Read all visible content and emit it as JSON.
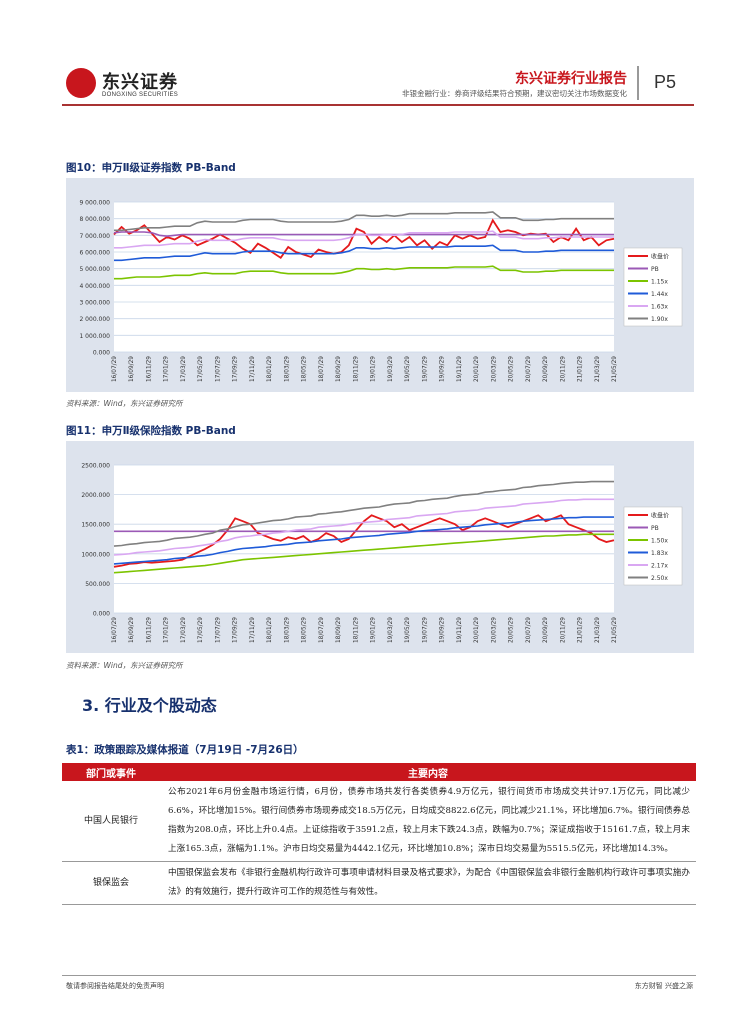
{
  "header": {
    "logo_name": "东兴证券",
    "logo_en": "DONGXING SECURITIES",
    "report_title": "东兴证券行业报告",
    "report_subtitle": "非银金融行业：券商评级结果符合预期，建议密切关注市场数据变化",
    "page": "P5"
  },
  "figure10": {
    "title": "图10：申万Ⅱ级证券指数 PB-Band",
    "source": "资料来源：Wind，东兴证券研究所"
  },
  "figure11": {
    "title": "图11：申万Ⅱ级保险指数 PB-Band",
    "source": "资料来源：Wind，东兴证券研究所"
  },
  "chart_data": [
    {
      "type": "line",
      "title": "",
      "ylim": [
        0,
        9000
      ],
      "y_ticks": [
        "0.000",
        "1 000.000",
        "2 000.000",
        "3 000.000",
        "4 000.000",
        "5 000.000",
        "6 000.000",
        "7 000.000",
        "8 000.000",
        "9 000.000"
      ],
      "x_ticks": [
        "16/07/29",
        "16/09/29",
        "16/11/29",
        "17/01/29",
        "17/03/29",
        "17/05/29",
        "17/07/29",
        "17/09/29",
        "17/11/29",
        "18/01/29",
        "18/03/29",
        "18/05/29",
        "18/07/29",
        "18/09/29",
        "18/11/29",
        "19/01/29",
        "19/03/29",
        "19/05/29",
        "19/07/29",
        "19/09/29",
        "19/11/29",
        "20/01/29",
        "20/03/29",
        "20/05/29",
        "20/07/29",
        "20/09/29",
        "20/11/29",
        "21/01/29",
        "21/03/29",
        "21/05/29"
      ],
      "legend_position": "right",
      "series": [
        {
          "name": "收盘价",
          "color": "#e41a1c",
          "values": [
            7050,
            7500,
            7100,
            7300,
            7600,
            7100,
            6600,
            6900,
            6750,
            7000,
            6800,
            6400,
            6600,
            6800,
            7050,
            6800,
            6550,
            6200,
            5950,
            6500,
            6250,
            5950,
            5650,
            6300,
            6000,
            5850,
            5700,
            6150,
            6000,
            5900,
            6000,
            6400,
            7400,
            7200,
            6500,
            6900,
            6600,
            7000,
            6600,
            6900,
            6400,
            6700,
            6200,
            6600,
            6400,
            7000,
            6800,
            7000,
            6800,
            6900,
            7900,
            7200,
            7300,
            7200,
            7000,
            7100,
            7050,
            7100,
            6600,
            6900,
            6700,
            7400,
            6700,
            6900,
            6400,
            6700,
            6800
          ]
        },
        {
          "name": "PB",
          "color": "#9b59b6",
          "values": [
            7150,
            7200,
            7200,
            7200,
            7200,
            7150,
            7000,
            6950,
            7000,
            7050,
            7050,
            7050,
            7050,
            7050,
            7050,
            7050,
            7050,
            7050,
            7050,
            7050,
            7050,
            7050,
            7050,
            7050,
            7050,
            7050,
            7050,
            7050,
            7050,
            7050,
            7050,
            7050,
            7050,
            7050,
            7050,
            7050,
            7050,
            7050,
            7050,
            7050,
            7050,
            7050,
            7050,
            7050,
            7050,
            7050,
            7050,
            7050,
            7050,
            7050,
            7050,
            7050,
            7050,
            7050,
            7050,
            7050,
            7050,
            7050,
            7050,
            7050,
            7050,
            7050,
            7050,
            7050,
            7050,
            7050,
            7050
          ]
        },
        {
          "name": "1.15x",
          "color": "#7cc400",
          "values": [
            4400,
            4400,
            4450,
            4500,
            4500,
            4500,
            4500,
            4550,
            4600,
            4600,
            4600,
            4700,
            4750,
            4700,
            4700,
            4700,
            4700,
            4800,
            4850,
            4850,
            4850,
            4850,
            4750,
            4700,
            4700,
            4700,
            4700,
            4700,
            4700,
            4700,
            4750,
            4850,
            5000,
            5000,
            4950,
            4950,
            5000,
            4950,
            5000,
            5050,
            5050,
            5050,
            5050,
            5050,
            5050,
            5100,
            5100,
            5100,
            5100,
            5100,
            5150,
            4900,
            4900,
            4900,
            4800,
            4800,
            4800,
            4850,
            4850,
            4900,
            4900,
            4900,
            4900,
            4900,
            4900,
            4900,
            4900
          ]
        },
        {
          "name": "1.44x",
          "color": "#1f5bd8",
          "values": [
            5500,
            5500,
            5550,
            5600,
            5650,
            5650,
            5650,
            5700,
            5750,
            5750,
            5750,
            5850,
            5950,
            5900,
            5900,
            5900,
            5900,
            6000,
            6050,
            6050,
            6050,
            6050,
            5950,
            5900,
            5900,
            5900,
            5900,
            5900,
            5900,
            5900,
            5950,
            6050,
            6250,
            6250,
            6200,
            6200,
            6250,
            6200,
            6250,
            6300,
            6300,
            6300,
            6300,
            6300,
            6300,
            6350,
            6350,
            6350,
            6350,
            6350,
            6400,
            6100,
            6100,
            6100,
            6000,
            6000,
            6000,
            6050,
            6050,
            6100,
            6100,
            6100,
            6100,
            6100,
            6100,
            6100,
            6100
          ]
        },
        {
          "name": "1.63x",
          "color": "#d9a7f2",
          "values": [
            6250,
            6250,
            6300,
            6350,
            6400,
            6400,
            6400,
            6450,
            6500,
            6500,
            6500,
            6650,
            6750,
            6700,
            6700,
            6700,
            6700,
            6800,
            6850,
            6850,
            6850,
            6850,
            6750,
            6700,
            6700,
            6700,
            6700,
            6700,
            6700,
            6700,
            6750,
            6850,
            7050,
            7050,
            7000,
            7000,
            7050,
            7000,
            7050,
            7150,
            7150,
            7150,
            7150,
            7150,
            7150,
            7200,
            7200,
            7200,
            7200,
            7200,
            7250,
            6900,
            6900,
            6900,
            6800,
            6800,
            6800,
            6850,
            6850,
            6900,
            6900,
            6900,
            6900,
            6900,
            6900,
            6900,
            6900
          ]
        },
        {
          "name": "1.90x",
          "color": "#808080",
          "values": [
            7300,
            7300,
            7350,
            7400,
            7450,
            7450,
            7450,
            7500,
            7550,
            7550,
            7550,
            7750,
            7850,
            7800,
            7800,
            7800,
            7800,
            7900,
            7950,
            7950,
            7950,
            7950,
            7850,
            7800,
            7800,
            7800,
            7800,
            7800,
            7800,
            7800,
            7850,
            7950,
            8200,
            8200,
            8150,
            8150,
            8200,
            8150,
            8200,
            8300,
            8300,
            8300,
            8300,
            8300,
            8300,
            8350,
            8350,
            8350,
            8350,
            8350,
            8400,
            8050,
            8050,
            8050,
            7900,
            7900,
            7900,
            7950,
            7950,
            8000,
            8000,
            8000,
            8000,
            8000,
            8000,
            8000,
            8000
          ]
        }
      ]
    },
    {
      "type": "line",
      "title": "",
      "ylim": [
        0,
        2500
      ],
      "y_ticks": [
        "0.000",
        "500.000",
        "1000.000",
        "1500.000",
        "2000.000",
        "2500.000"
      ],
      "x_ticks": [
        "16/07/29",
        "16/09/29",
        "16/11/29",
        "17/01/29",
        "17/03/29",
        "17/05/29",
        "17/07/29",
        "17/09/29",
        "17/11/29",
        "18/01/29",
        "18/03/29",
        "18/05/29",
        "18/07/29",
        "18/09/29",
        "18/11/29",
        "19/01/29",
        "19/03/29",
        "19/05/29",
        "19/07/29",
        "19/09/29",
        "19/11/29",
        "20/01/29",
        "20/03/29",
        "20/05/29",
        "20/07/29",
        "20/09/29",
        "20/11/29",
        "21/01/29",
        "21/03/29",
        "21/05/29"
      ],
      "legend_position": "right",
      "series": [
        {
          "name": "收盘价",
          "color": "#e41a1c",
          "values": [
            780,
            800,
            830,
            840,
            860,
            850,
            860,
            870,
            880,
            900,
            960,
            1020,
            1080,
            1150,
            1250,
            1400,
            1600,
            1550,
            1500,
            1350,
            1300,
            1250,
            1220,
            1280,
            1250,
            1300,
            1200,
            1250,
            1350,
            1300,
            1200,
            1250,
            1400,
            1550,
            1650,
            1600,
            1550,
            1450,
            1500,
            1400,
            1450,
            1500,
            1550,
            1600,
            1550,
            1500,
            1400,
            1450,
            1550,
            1600,
            1550,
            1500,
            1450,
            1500,
            1550,
            1600,
            1650,
            1550,
            1600,
            1650,
            1500,
            1450,
            1400,
            1350,
            1250,
            1200,
            1230
          ]
        },
        {
          "name": "PB",
          "color": "#9b59b6",
          "values": [
            1380,
            1380,
            1380,
            1380,
            1380,
            1380,
            1380,
            1380,
            1380,
            1380,
            1380,
            1380,
            1380,
            1380,
            1380,
            1380,
            1380,
            1380,
            1380,
            1380,
            1380,
            1380,
            1380,
            1380,
            1380,
            1380,
            1380,
            1380,
            1380,
            1380,
            1380,
            1380,
            1380,
            1380,
            1380,
            1380,
            1380,
            1380,
            1380,
            1380,
            1380,
            1380,
            1380,
            1380,
            1380,
            1380,
            1380,
            1380,
            1380,
            1380,
            1380,
            1380,
            1380,
            1380,
            1380,
            1380,
            1380,
            1380,
            1380,
            1380,
            1380,
            1380,
            1380,
            1380,
            1380,
            1380,
            1380
          ]
        },
        {
          "name": "1.50x",
          "color": "#7cc400",
          "values": [
            680,
            690,
            700,
            710,
            720,
            730,
            740,
            750,
            760,
            770,
            780,
            790,
            800,
            820,
            840,
            860,
            880,
            900,
            910,
            920,
            930,
            940,
            950,
            960,
            970,
            980,
            990,
            1000,
            1010,
            1020,
            1030,
            1040,
            1050,
            1060,
            1070,
            1080,
            1090,
            1100,
            1110,
            1120,
            1130,
            1140,
            1150,
            1160,
            1170,
            1180,
            1190,
            1200,
            1210,
            1220,
            1230,
            1240,
            1250,
            1260,
            1270,
            1280,
            1290,
            1300,
            1300,
            1310,
            1320,
            1320,
            1330,
            1330,
            1330,
            1330,
            1330
          ]
        },
        {
          "name": "1.83x",
          "color": "#1f5bd8",
          "values": [
            830,
            840,
            850,
            860,
            870,
            880,
            890,
            900,
            920,
            930,
            940,
            960,
            970,
            990,
            1020,
            1040,
            1070,
            1090,
            1100,
            1110,
            1120,
            1140,
            1150,
            1160,
            1180,
            1190,
            1200,
            1220,
            1230,
            1240,
            1250,
            1270,
            1280,
            1290,
            1300,
            1310,
            1330,
            1340,
            1350,
            1360,
            1380,
            1390,
            1400,
            1410,
            1420,
            1440,
            1450,
            1460,
            1470,
            1490,
            1500,
            1510,
            1520,
            1530,
            1550,
            1560,
            1570,
            1580,
            1590,
            1600,
            1610,
            1610,
            1620,
            1620,
            1620,
            1620,
            1620
          ]
        },
        {
          "name": "2.17x",
          "color": "#d9a7f2",
          "values": [
            980,
            990,
            1000,
            1020,
            1030,
            1040,
            1050,
            1070,
            1090,
            1100,
            1110,
            1130,
            1150,
            1170,
            1210,
            1230,
            1270,
            1290,
            1300,
            1320,
            1330,
            1350,
            1360,
            1380,
            1400,
            1410,
            1420,
            1450,
            1460,
            1470,
            1480,
            1500,
            1520,
            1530,
            1540,
            1550,
            1580,
            1590,
            1600,
            1610,
            1640,
            1650,
            1660,
            1670,
            1680,
            1710,
            1720,
            1730,
            1740,
            1770,
            1780,
            1790,
            1800,
            1810,
            1840,
            1850,
            1860,
            1870,
            1880,
            1900,
            1910,
            1910,
            1920,
            1920,
            1920,
            1920,
            1920
          ]
        },
        {
          "name": "2.50x",
          "color": "#808080",
          "values": [
            1130,
            1140,
            1160,
            1170,
            1190,
            1200,
            1210,
            1230,
            1260,
            1270,
            1280,
            1300,
            1330,
            1350,
            1400,
            1420,
            1460,
            1490,
            1500,
            1520,
            1540,
            1560,
            1570,
            1590,
            1620,
            1630,
            1640,
            1670,
            1680,
            1700,
            1710,
            1730,
            1750,
            1770,
            1780,
            1790,
            1820,
            1840,
            1850,
            1860,
            1890,
            1900,
            1920,
            1930,
            1940,
            1970,
            1990,
            2000,
            2010,
            2040,
            2050,
            2070,
            2080,
            2090,
            2120,
            2130,
            2150,
            2160,
            2170,
            2190,
            2200,
            2210,
            2210,
            2220,
            2220,
            2220,
            2220
          ]
        }
      ]
    }
  ],
  "section": {
    "title": "3.  行业及个股动态"
  },
  "table": {
    "title": "表1：政策跟踪及媒体报道（7月19日 -7月26日）",
    "headers": [
      "部门或事件",
      "主要内容"
    ],
    "rows": [
      {
        "dept": "中国人民银行",
        "content": "公布2021年6月份金融市场运行情，6月份，债券市场共发行各类债券4.9万亿元，银行间货币市场成交共计97.1万亿元，同比减少6.6%，环比增加15%。银行间债券市场现券成交18.5万亿元，日均成交8822.6亿元，同比减少21.1%，环比增加6.7%。银行间债券总指数为208.0点，环比上升0.4点。上证综指收于3591.2点，较上月末下跌24.3点，跌幅为0.7%；深证成指收于15161.7点，较上月末上涨165.3点，涨幅为1.1%。沪市日均交易量为4442.1亿元，环比增加10.8%；深市日均交易量为5515.5亿元，环比增加14.3%。"
      },
      {
        "dept": "银保监会",
        "content": "中国银保监会发布《非银行金融机构行政许可事项申请材料目录及格式要求》，为配合《中国银保监会非银行金融机构行政许可事项实施办法》的有效施行，提升行政许可工作的规范性与有效性。"
      }
    ]
  },
  "footer": {
    "left": "敬请参阅报告结尾处的免责声明",
    "right": "东方财智  兴盛之源"
  }
}
